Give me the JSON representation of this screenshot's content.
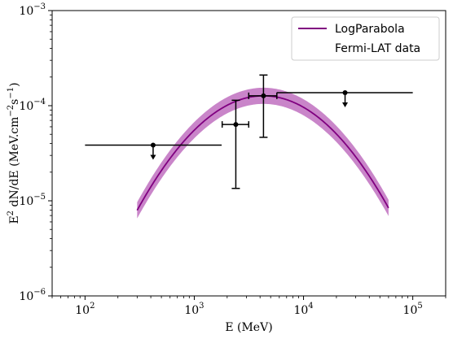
{
  "chart_data": {
    "type": "scatter",
    "xscale": "log",
    "yscale": "log",
    "xlim": [
      50,
      200000
    ],
    "ylim": [
      1e-06,
      0.001
    ],
    "xlabel": "E (MeV)",
    "ylabel_parts": {
      "base": "E",
      "sup1": "2",
      "mid": " dN/dE (MeV.cm",
      "sup2": "−2",
      "mid2": "s",
      "sup3": "−1",
      "end": ")"
    },
    "xticks": [
      {
        "value": 100,
        "base": "10",
        "exp": "2"
      },
      {
        "value": 1000,
        "base": "10",
        "exp": "3"
      },
      {
        "value": 10000,
        "base": "10",
        "exp": "4"
      },
      {
        "value": 100000,
        "base": "10",
        "exp": "5"
      }
    ],
    "yticks": [
      {
        "value": 1e-06,
        "base": "10",
        "exp": "−6"
      },
      {
        "value": 1e-05,
        "base": "10",
        "exp": "−5"
      },
      {
        "value": 0.0001,
        "base": "10",
        "exp": "−4"
      },
      {
        "value": 0.001,
        "base": "10",
        "exp": "−3"
      }
    ],
    "model": {
      "name": "LogParabola",
      "color": "#800080",
      "band_color": "#c070c0",
      "peak_energy": 4300,
      "peak_flux": 0.000127,
      "beta": 0.9,
      "band_dex": 0.085
    },
    "data_series": {
      "name": "Fermi-LAT data",
      "color": "#000000",
      "points": [
        {
          "x": 420,
          "y": 3.85e-05,
          "xmin": 100,
          "xmax": 1780,
          "upper_limit": true
        },
        {
          "x": 2400,
          "y": 6.35e-05,
          "xmin": 1800,
          "xmax": 3150,
          "ymin": 1.35e-05,
          "ymax": 0.000114,
          "upper_limit": false
        },
        {
          "x": 4300,
          "y": 0.000127,
          "xmin": 3150,
          "xmax": 5700,
          "ymin": 4.65e-05,
          "ymax": 0.00021,
          "upper_limit": false
        },
        {
          "x": 24000,
          "y": 0.000137,
          "xmin": 5700,
          "xmax": 100000,
          "upper_limit": true
        }
      ]
    },
    "legend_position": "top-right"
  }
}
